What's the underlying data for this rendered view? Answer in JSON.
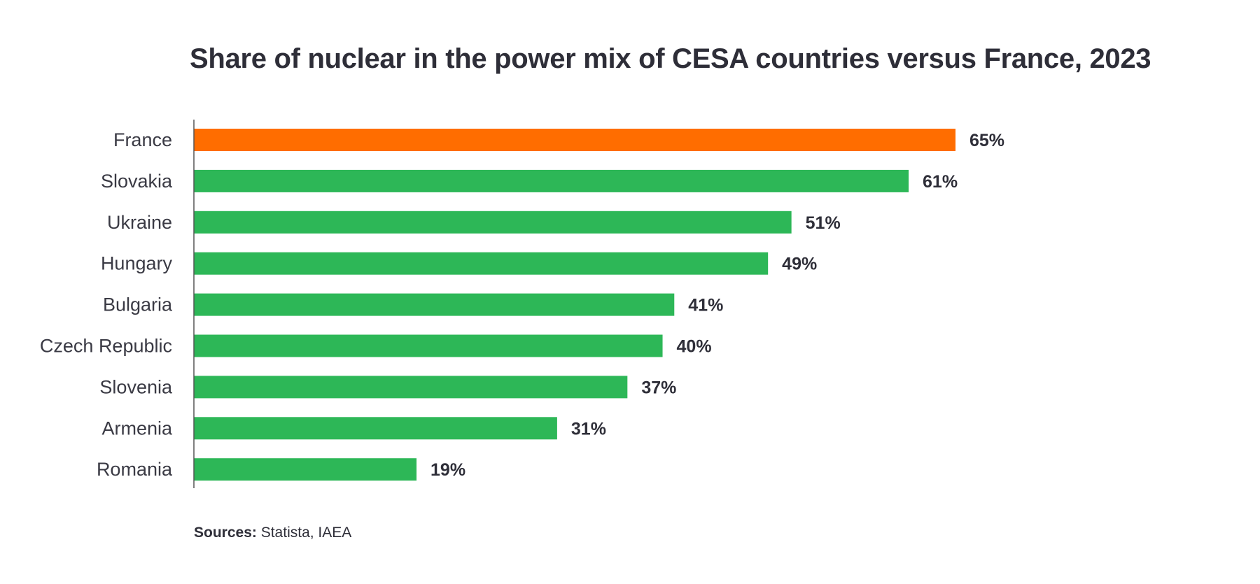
{
  "chart_data": {
    "type": "bar",
    "orientation": "horizontal",
    "title": "Share of nuclear in the power mix of CESA countries versus France, 2023",
    "categories": [
      "France",
      "Slovakia",
      "Ukraine",
      "Hungary",
      "Bulgaria",
      "Czech Republic",
      "Slovenia",
      "Armenia",
      "Romania"
    ],
    "values": [
      65,
      61,
      51,
      49,
      41,
      40,
      37,
      31,
      19
    ],
    "value_labels": [
      "65%",
      "61%",
      "51%",
      "49%",
      "41%",
      "40%",
      "37%",
      "31%",
      "19%"
    ],
    "unit": "%",
    "xlim": [
      0,
      65
    ],
    "grid": false,
    "highlight_color": "#ff6d00",
    "bar_color": "#2db757"
  },
  "footer": {
    "sources_label": "Sources:",
    "sources_text": " Statista, IAEA"
  }
}
